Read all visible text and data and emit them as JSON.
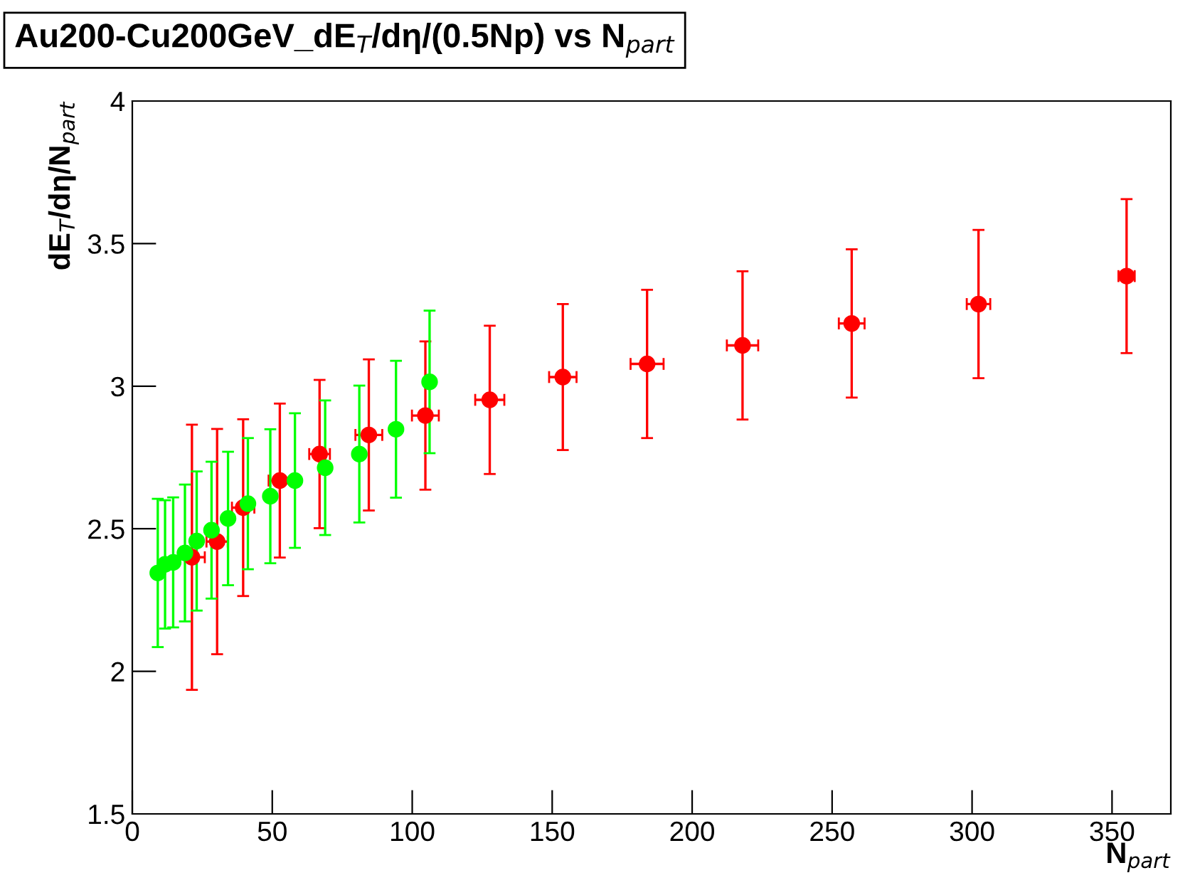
{
  "chart_data": {
    "type": "scatter",
    "title": "Au200-Cu200GeV_dE$_{T}$/dη/(0.5Np) vs N$_{part}$",
    "xlabel": "N$_{part}$",
    "ylabel": "dE$_{T}$/dη/N$_{part}$",
    "xlim": [
      0,
      371
    ],
    "ylim": [
      1.5,
      4
    ],
    "xticks": [
      0,
      50,
      100,
      150,
      200,
      250,
      300,
      350
    ],
    "yticks": [
      1.5,
      2,
      2.5,
      3,
      3.5,
      4
    ],
    "grid": false,
    "legend": false,
    "marker": "circle",
    "series": [
      {
        "color": "#ff0000",
        "x": [
          21.3,
          30.3,
          39.6,
          52.7,
          66.9,
          84.5,
          104.7,
          127.7,
          153.8,
          183.9,
          218,
          257,
          302.3,
          355.2
        ],
        "values": [
          2.4,
          2.455,
          2.574,
          2.669,
          2.762,
          2.829,
          2.897,
          2.952,
          3.032,
          3.078,
          3.143,
          3.22,
          3.288,
          3.386
        ],
        "errors": [
          0.465,
          0.395,
          0.31,
          0.27,
          0.26,
          0.265,
          0.26,
          0.26,
          0.256,
          0.26,
          0.26,
          0.26,
          0.26,
          0.27
        ],
        "xerrors": [
          4.6,
          3.8,
          4,
          4,
          3.7,
          4.8,
          4.8,
          5.2,
          4.9,
          5.9,
          5.6,
          4.6,
          4.2,
          2.9
        ]
      },
      {
        "color": "#00ff00",
        "x": [
          9.1,
          11.7,
          14.6,
          18.8,
          23.0,
          28.3,
          34.2,
          41.3,
          49.3,
          58.1,
          68.9,
          81.1,
          94.2,
          106.2
        ],
        "values": [
          2.345,
          2.375,
          2.382,
          2.415,
          2.457,
          2.495,
          2.536,
          2.588,
          2.614,
          2.669,
          2.714,
          2.762,
          2.849,
          3.015
        ],
        "errors": [
          0.26,
          0.225,
          0.228,
          0.24,
          0.244,
          0.24,
          0.234,
          0.23,
          0.235,
          0.236,
          0.236,
          0.24,
          0.24,
          0.25
        ]
      }
    ]
  }
}
